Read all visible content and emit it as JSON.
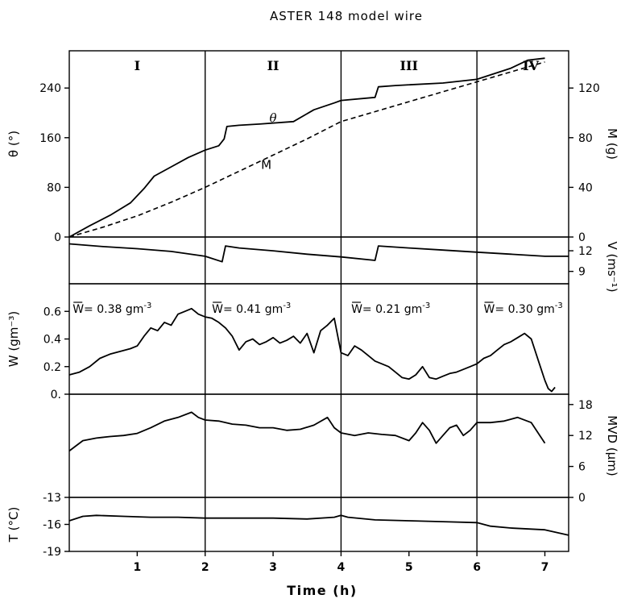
{
  "chart_data": {
    "type": "line",
    "title": "ASTER 148 model wire",
    "xlabel": "Time (h)",
    "xlim": [
      0,
      7.35
    ],
    "xticks": [
      "1",
      "2",
      "3",
      "4",
      "5",
      "6",
      "7"
    ],
    "phases": [
      "I",
      "II",
      "III",
      "IV"
    ],
    "phase_boundaries": [
      2,
      4,
      6
    ],
    "panels": [
      {
        "id": "theta_m",
        "ylabel_left": "θ (°)",
        "ylabel_right": "M (g)",
        "ylim_left": [
          0,
          300
        ],
        "ylim_right": [
          0,
          150
        ],
        "yticks_left": [
          "0",
          "80",
          "160",
          "240"
        ],
        "yticks_right": [
          "0",
          "40",
          "80",
          "120"
        ],
        "series": [
          {
            "name": "θ",
            "axis": "left",
            "style": "solid",
            "x": [
              0,
              0.3,
              0.6,
              0.9,
              1.1,
              1.25,
              1.5,
              1.75,
              2.0,
              2.2,
              2.28,
              2.32,
              2.5,
              2.8,
              3.3,
              3.6,
              3.9,
              4.0,
              4.5,
              4.55,
              4.8,
              5.5,
              6.0,
              6.5,
              6.75,
              7.0
            ],
            "y": [
              0,
              18,
              35,
              55,
              78,
              98,
              113,
              128,
              140,
              147,
              158,
              178,
              180,
              182,
              186,
              205,
              216,
              220,
              225,
              242,
              244,
              248,
              254,
              272,
              285,
              288
            ]
          },
          {
            "name": "M",
            "axis": "right",
            "style": "dashed",
            "x": [
              0,
              0.5,
              1.0,
              1.5,
              2.0,
              2.5,
              3.0,
              3.5,
              4.0,
              4.5,
              5.0,
              5.5,
              6.0,
              6.5,
              7.0
            ],
            "y": [
              0,
              8,
              17,
              28,
              40,
              53,
              66,
              79,
              93,
              101,
              109,
              117,
              125,
              133,
              141
            ]
          }
        ],
        "annotations": [
          {
            "text": "θ",
            "x": 3.0,
            "y": 185,
            "axis": "left"
          },
          {
            "text": "M",
            "x": 2.9,
            "y": 110,
            "axis": "left"
          }
        ]
      },
      {
        "id": "velocity",
        "ylabel_right": "V (ms⁻¹)",
        "ylim": [
          7.2,
          14
        ],
        "yticks_right": [
          "9",
          "12"
        ],
        "series": [
          {
            "name": "V",
            "style": "solid",
            "x": [
              0,
              0.5,
              1.0,
              1.5,
              2.0,
              2.25,
              2.3,
              2.5,
              3.0,
              3.5,
              4.0,
              4.5,
              4.55,
              5.0,
              5.5,
              6.0,
              6.5,
              7.0,
              7.35
            ],
            "y": [
              13.0,
              12.6,
              12.3,
              11.9,
              11.2,
              10.4,
              12.7,
              12.4,
              12.0,
              11.5,
              11.1,
              10.6,
              12.7,
              12.4,
              12.1,
              11.8,
              11.5,
              11.2,
              11.2
            ]
          }
        ]
      },
      {
        "id": "lwc",
        "ylabel_left": "W (gm⁻³)",
        "ylim": [
          0,
          0.8
        ],
        "yticks_left": [
          "0.",
          "0.2",
          "0.4",
          "0.6"
        ],
        "mean_labels": [
          {
            "x": 0.05,
            "bar": "W",
            "text": "= 0.38 gm",
            "sup": "-3"
          },
          {
            "x": 2.1,
            "bar": "W",
            "text": "= 0.41 gm",
            "sup": "-3"
          },
          {
            "x": 4.15,
            "bar": "W",
            "text": "= 0.21 gm",
            "sup": "-3"
          },
          {
            "x": 6.1,
            "bar": "W",
            "text": "= 0.30 gm",
            "sup": "-3"
          }
        ],
        "series": [
          {
            "name": "W",
            "style": "solid",
            "x": [
              0,
              0.15,
              0.3,
              0.45,
              0.6,
              0.75,
              0.9,
              1.0,
              1.1,
              1.2,
              1.3,
              1.4,
              1.5,
              1.6,
              1.7,
              1.8,
              1.9,
              2.0,
              2.1,
              2.2,
              2.3,
              2.4,
              2.5,
              2.6,
              2.7,
              2.8,
              2.9,
              3.0,
              3.1,
              3.2,
              3.3,
              3.4,
              3.5,
              3.6,
              3.7,
              3.8,
              3.9,
              4.0,
              4.1,
              4.2,
              4.3,
              4.4,
              4.5,
              4.6,
              4.7,
              4.8,
              4.9,
              5.0,
              5.1,
              5.2,
              5.3,
              5.4,
              5.5,
              5.6,
              5.7,
              5.8,
              5.9,
              6.0,
              6.1,
              6.2,
              6.3,
              6.4,
              6.5,
              6.6,
              6.7,
              6.8,
              6.9,
              7.0,
              7.05,
              7.1,
              7.15
            ],
            "y": [
              0.14,
              0.16,
              0.2,
              0.26,
              0.29,
              0.31,
              0.33,
              0.35,
              0.42,
              0.48,
              0.46,
              0.52,
              0.5,
              0.58,
              0.6,
              0.62,
              0.58,
              0.56,
              0.55,
              0.52,
              0.48,
              0.42,
              0.32,
              0.38,
              0.4,
              0.36,
              0.38,
              0.41,
              0.37,
              0.39,
              0.42,
              0.37,
              0.44,
              0.3,
              0.46,
              0.5,
              0.55,
              0.3,
              0.28,
              0.35,
              0.32,
              0.28,
              0.24,
              0.22,
              0.2,
              0.16,
              0.12,
              0.11,
              0.14,
              0.2,
              0.12,
              0.11,
              0.13,
              0.15,
              0.16,
              0.18,
              0.2,
              0.22,
              0.26,
              0.28,
              0.32,
              0.36,
              0.38,
              0.41,
              0.44,
              0.4,
              0.25,
              0.1,
              0.04,
              0.02,
              0.05
            ]
          }
        ]
      },
      {
        "id": "mvd",
        "ylabel_right": "MVD (μm)",
        "ylim": [
          0,
          20
        ],
        "yticks_right": [
          "0",
          "6",
          "12",
          "18"
        ],
        "series": [
          {
            "name": "MVD",
            "style": "solid",
            "x": [
              0,
              0.1,
              0.2,
              0.4,
              0.6,
              0.8,
              1.0,
              1.2,
              1.4,
              1.6,
              1.8,
              1.9,
              2.0,
              2.2,
              2.4,
              2.6,
              2.8,
              3.0,
              3.2,
              3.4,
              3.6,
              3.8,
              3.9,
              4.0,
              4.2,
              4.4,
              4.6,
              4.8,
              5.0,
              5.1,
              5.2,
              5.3,
              5.4,
              5.5,
              5.6,
              5.7,
              5.8,
              5.9,
              6.0,
              6.2,
              6.4,
              6.6,
              6.8,
              7.0
            ],
            "y": [
              9,
              10,
              11,
              11.5,
              11.8,
              12,
              12.4,
              13.5,
              14.8,
              15.5,
              16.5,
              15.5,
              15,
              14.8,
              14.2,
              14,
              13.5,
              13.5,
              13,
              13.2,
              14,
              15.5,
              13.5,
              12.5,
              12,
              12.5,
              12.2,
              12,
              11,
              12.5,
              14.5,
              13,
              10.5,
              12,
              13.5,
              14,
              12,
              13,
              14.5,
              14.5,
              14.8,
              15.5,
              14.5,
              10.5
            ]
          }
        ]
      },
      {
        "id": "temperature",
        "ylabel_left": "T (°C)",
        "ylim": [
          -19,
          -13
        ],
        "yticks_left": [
          "-13",
          "-16",
          "-19"
        ],
        "series": [
          {
            "name": "T",
            "style": "solid",
            "x": [
              0,
              0.2,
              0.4,
              0.8,
              1.2,
              1.6,
              2.0,
              2.5,
              3.0,
              3.5,
              3.9,
              4.0,
              4.1,
              4.5,
              5.0,
              5.5,
              6.0,
              6.2,
              6.5,
              7.0,
              7.35
            ],
            "y": [
              -15.6,
              -15.1,
              -15.0,
              -15.1,
              -15.2,
              -15.2,
              -15.3,
              -15.3,
              -15.3,
              -15.4,
              -15.2,
              -15.0,
              -15.2,
              -15.5,
              -15.6,
              -15.7,
              -15.8,
              -16.2,
              -16.4,
              -16.6,
              -17.2
            ]
          }
        ]
      }
    ]
  }
}
